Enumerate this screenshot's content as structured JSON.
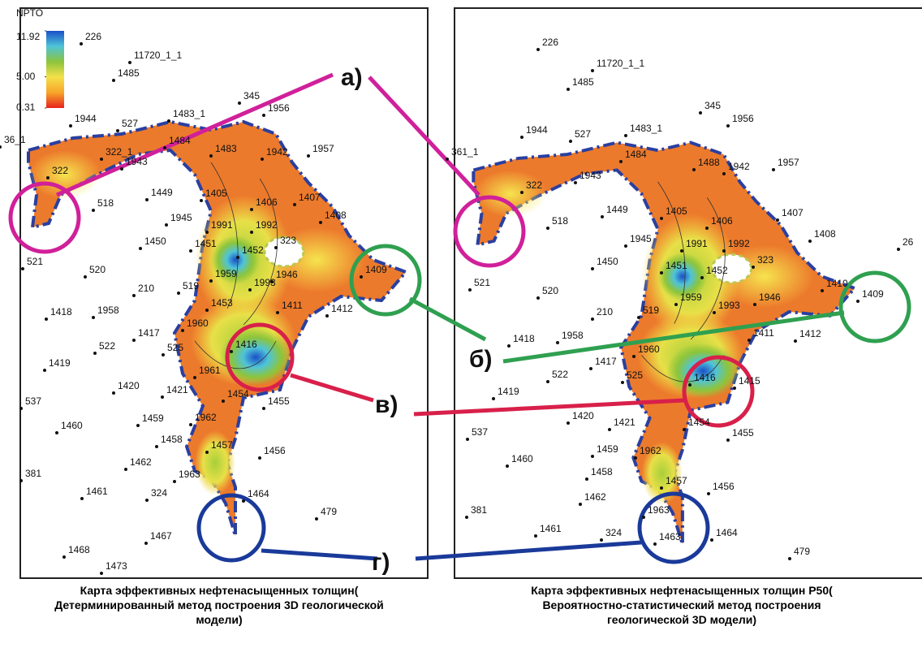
{
  "colorbar": {
    "title": "NPTO",
    "ticks": [
      11.92,
      {
        "value": 5,
        "label": "5.00"
      },
      0.31
    ]
  },
  "annotations": [
    "а)",
    "б)",
    "в)",
    "г)"
  ],
  "left_map": {
    "caption": "Карта эффективных нефтенасыщенных толщин( Детерминированный метод построения 3D геологической модели)",
    "wells": [
      "226",
      "11720_1_1",
      "1485",
      "345",
      "1956",
      "1944",
      "527",
      "1483_1",
      "36_1",
      "1957",
      "322_1",
      "1943",
      "1483",
      "1942",
      "1484",
      "322",
      "1449",
      "1405",
      "1406",
      "1407",
      "1408",
      "518",
      "1945",
      "1991",
      "1992",
      "323",
      "1450",
      "1451",
      "1452",
      "1409",
      "521",
      "520",
      "1959",
      "1946",
      "210",
      "519",
      "1993",
      "1418",
      "1958",
      "1453",
      "1411",
      "1412",
      "1417",
      "1960",
      "522",
      "525",
      "1416",
      "1419",
      "1961",
      "1420",
      "1421",
      "1454",
      "1455",
      "537",
      "1459",
      "1962",
      "1460",
      "1458",
      "1457",
      "1456",
      "1462",
      "381",
      "1963",
      "1461",
      "324",
      "1464",
      "479",
      "1467",
      "1468",
      "1473"
    ]
  },
  "right_map": {
    "caption": "Карта эффективных нефтенасыщенных толщин Р50( Вероятностно-статистический метод построения геологической 3D модели)",
    "wells": [
      "226",
      "11720_1_1",
      "1485",
      "345",
      "1956",
      "1944",
      "527",
      "1483_1",
      "361_1",
      "1957",
      "1484",
      "1943",
      "1488",
      "1942",
      "322",
      "1449",
      "1405",
      "1406",
      "1407",
      "1408",
      "518",
      "1945",
      "1991",
      "1992",
      "323",
      "26",
      "1450",
      "1451",
      "1452",
      "521",
      "520",
      "1410",
      "1959",
      "1946",
      "1409",
      "210",
      "519",
      "1993",
      "1418",
      "1958",
      "1411",
      "1412",
      "1417",
      "1960",
      "522",
      "525",
      "1416",
      "1415",
      "1419",
      "1420",
      "1421",
      "1454",
      "1455",
      "537",
      "1459",
      "1962",
      "1460",
      "1458",
      "1457",
      "1456",
      "1462",
      "1963",
      "381",
      "1461",
      "324",
      "1463",
      "1464",
      "479"
    ]
  }
}
